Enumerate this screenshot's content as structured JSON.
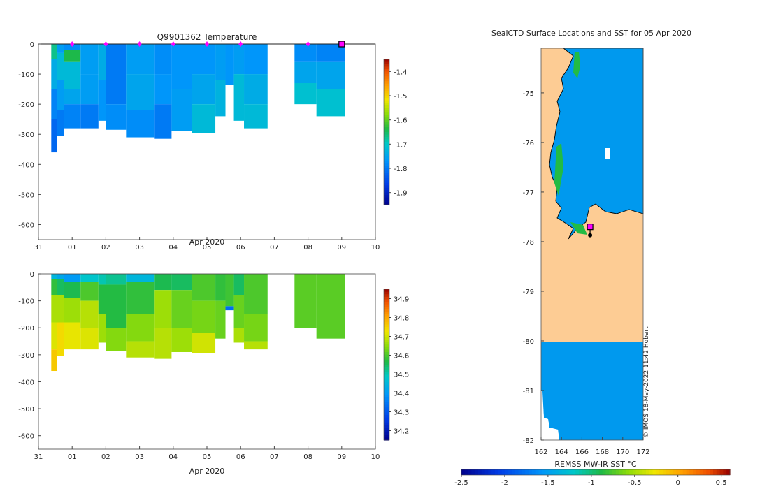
{
  "chart_data": [
    {
      "type": "heatmap",
      "title": "Q9901362  Temperature",
      "xlabel": "Apr 2020",
      "ylabel": "",
      "xticks": [
        "31",
        "01",
        "02",
        "03",
        "04",
        "05",
        "06",
        "07",
        "08",
        "09",
        "10"
      ],
      "xlim": [
        0,
        10
      ],
      "ylim": [
        -650,
        0
      ],
      "yticks": [
        0,
        -100,
        -200,
        -300,
        -400,
        -500,
        -600
      ],
      "colorbar": {
        "ticks": [
          -1.4,
          -1.5,
          -1.6,
          -1.7,
          -1.8,
          -1.9
        ],
        "range": [
          -1.95,
          -1.35
        ]
      },
      "marker_days": [
        1,
        2,
        3,
        4,
        5,
        6,
        8
      ],
      "last_profile_day": 9,
      "profiles": [
        {
          "x0": 0.38,
          "x1": 0.55,
          "bottom": -360,
          "layers": [
            {
              "d": -50,
              "v": -1.67
            },
            {
              "d": -150,
              "v": -1.74
            },
            {
              "d": -250,
              "v": -1.79
            },
            {
              "d": -360,
              "v": -1.82
            }
          ]
        },
        {
          "x0": 0.55,
          "x1": 0.75,
          "bottom": -305,
          "layers": [
            {
              "d": -30,
              "v": -1.76
            },
            {
              "d": -120,
              "v": -1.72
            },
            {
              "d": -220,
              "v": -1.76
            },
            {
              "d": -305,
              "v": -1.8
            }
          ]
        },
        {
          "x0": 0.75,
          "x1": 1.25,
          "bottom": -280,
          "layers": [
            {
              "d": -20,
              "v": -1.78
            },
            {
              "d": -60,
              "v": -1.64
            },
            {
              "d": -150,
              "v": -1.72
            },
            {
              "d": -200,
              "v": -1.75
            },
            {
              "d": -280,
              "v": -1.79
            }
          ]
        },
        {
          "x0": 1.25,
          "x1": 1.78,
          "bottom": -280,
          "layers": [
            {
              "d": -100,
              "v": -1.76
            },
            {
              "d": -200,
              "v": -1.76
            },
            {
              "d": -280,
              "v": -1.8
            }
          ]
        },
        {
          "x0": 1.78,
          "x1": 2.0,
          "bottom": -255,
          "layers": [
            {
              "d": -120,
              "v": -1.74
            },
            {
              "d": -255,
              "v": -1.77
            }
          ]
        },
        {
          "x0": 2.0,
          "x1": 2.6,
          "bottom": -285,
          "layers": [
            {
              "d": -200,
              "v": -1.8
            },
            {
              "d": -285,
              "v": -1.78
            }
          ]
        },
        {
          "x0": 2.6,
          "x1": 3.45,
          "bottom": -310,
          "layers": [
            {
              "d": -100,
              "v": -1.76
            },
            {
              "d": -220,
              "v": -1.75
            },
            {
              "d": -310,
              "v": -1.78
            }
          ]
        },
        {
          "x0": 3.45,
          "x1": 3.95,
          "bottom": -315,
          "layers": [
            {
              "d": -100,
              "v": -1.78
            },
            {
              "d": -200,
              "v": -1.77
            },
            {
              "d": -315,
              "v": -1.8
            }
          ]
        },
        {
          "x0": 3.95,
          "x1": 4.55,
          "bottom": -290,
          "layers": [
            {
              "d": -150,
              "v": -1.77
            },
            {
              "d": -290,
              "v": -1.76
            }
          ]
        },
        {
          "x0": 4.55,
          "x1": 5.25,
          "bottom": -295,
          "layers": [
            {
              "d": -100,
              "v": -1.77
            },
            {
              "d": -200,
              "v": -1.75
            },
            {
              "d": -295,
              "v": -1.72
            }
          ]
        },
        {
          "x0": 5.25,
          "x1": 5.55,
          "bottom": -240,
          "layers": [
            {
              "d": -120,
              "v": -1.76
            },
            {
              "d": -240,
              "v": -1.73
            }
          ]
        },
        {
          "x0": 5.55,
          "x1": 5.8,
          "bottom": -135,
          "layers": [
            {
              "d": -135,
              "v": -1.77
            }
          ]
        },
        {
          "x0": 5.8,
          "x1": 6.1,
          "bottom": -255,
          "layers": [
            {
              "d": -100,
              "v": -1.76
            },
            {
              "d": -255,
              "v": -1.72
            }
          ]
        },
        {
          "x0": 6.1,
          "x1": 6.8,
          "bottom": -280,
          "layers": [
            {
              "d": -100,
              "v": -1.77
            },
            {
              "d": -200,
              "v": -1.74
            },
            {
              "d": -280,
              "v": -1.72
            }
          ]
        },
        {
          "x0": 7.6,
          "x1": 8.25,
          "bottom": -200,
          "layers": [
            {
              "d": -60,
              "v": -1.78
            },
            {
              "d": -130,
              "v": -1.75
            },
            {
              "d": -200,
              "v": -1.71
            }
          ]
        },
        {
          "x0": 8.25,
          "x1": 9.1,
          "bottom": -240,
          "layers": [
            {
              "d": -60,
              "v": -1.79
            },
            {
              "d": -150,
              "v": -1.75
            },
            {
              "d": -240,
              "v": -1.71
            }
          ]
        }
      ]
    },
    {
      "type": "heatmap",
      "title": "",
      "xlabel": "Apr 2020",
      "ylabel": "",
      "xticks": [
        "31",
        "01",
        "02",
        "03",
        "04",
        "05",
        "06",
        "07",
        "08",
        "09",
        "10"
      ],
      "xlim": [
        0,
        10
      ],
      "ylim": [
        -650,
        0
      ],
      "yticks": [
        0,
        -100,
        -200,
        -300,
        -400,
        -500,
        -600
      ],
      "colorbar": {
        "ticks": [
          34.9,
          34.8,
          34.7,
          34.6,
          34.5,
          34.4,
          34.3,
          34.2
        ],
        "range": [
          34.15,
          34.95
        ]
      },
      "profiles": [
        {
          "x0": 0.38,
          "x1": 0.55,
          "bottom": -360,
          "layers": [
            {
              "d": -20,
              "v": 34.45
            },
            {
              "d": -80,
              "v": 34.58
            },
            {
              "d": -180,
              "v": 34.67
            },
            {
              "d": -280,
              "v": 34.71
            },
            {
              "d": -360,
              "v": 34.76
            }
          ]
        },
        {
          "x0": 0.55,
          "x1": 0.75,
          "bottom": -305,
          "layers": [
            {
              "d": -20,
              "v": 34.42
            },
            {
              "d": -80,
              "v": 34.55
            },
            {
              "d": -180,
              "v": 34.67
            },
            {
              "d": -305,
              "v": 34.74
            }
          ]
        },
        {
          "x0": 0.75,
          "x1": 1.25,
          "bottom": -280,
          "layers": [
            {
              "d": -30,
              "v": 34.4
            },
            {
              "d": -90,
              "v": 34.56
            },
            {
              "d": -180,
              "v": 34.66
            },
            {
              "d": -280,
              "v": 34.72
            }
          ]
        },
        {
          "x0": 1.25,
          "x1": 1.78,
          "bottom": -280,
          "layers": [
            {
              "d": -30,
              "v": 34.48
            },
            {
              "d": -100,
              "v": 34.6
            },
            {
              "d": -200,
              "v": 34.68
            },
            {
              "d": -280,
              "v": 34.71
            }
          ]
        },
        {
          "x0": 1.78,
          "x1": 2.0,
          "bottom": -255,
          "layers": [
            {
              "d": -40,
              "v": 34.5
            },
            {
              "d": -150,
              "v": 34.57
            },
            {
              "d": -255,
              "v": 34.66
            }
          ]
        },
        {
          "x0": 2.0,
          "x1": 2.6,
          "bottom": -285,
          "layers": [
            {
              "d": -40,
              "v": 34.52
            },
            {
              "d": -200,
              "v": 34.57
            },
            {
              "d": -285,
              "v": 34.64
            }
          ]
        },
        {
          "x0": 2.6,
          "x1": 3.45,
          "bottom": -310,
          "layers": [
            {
              "d": -30,
              "v": 34.45
            },
            {
              "d": -150,
              "v": 34.58
            },
            {
              "d": -250,
              "v": 34.64
            },
            {
              "d": -310,
              "v": 34.68
            }
          ]
        },
        {
          "x0": 3.45,
          "x1": 3.95,
          "bottom": -315,
          "layers": [
            {
              "d": -60,
              "v": 34.56
            },
            {
              "d": -200,
              "v": 34.66
            },
            {
              "d": -315,
              "v": 34.68
            }
          ]
        },
        {
          "x0": 3.95,
          "x1": 4.55,
          "bottom": -290,
          "layers": [
            {
              "d": -60,
              "v": 34.55
            },
            {
              "d": -200,
              "v": 34.62
            },
            {
              "d": -290,
              "v": 34.66
            }
          ]
        },
        {
          "x0": 4.55,
          "x1": 5.25,
          "bottom": -295,
          "layers": [
            {
              "d": -100,
              "v": 34.6
            },
            {
              "d": -220,
              "v": 34.63
            },
            {
              "d": -295,
              "v": 34.7
            }
          ]
        },
        {
          "x0": 5.25,
          "x1": 5.55,
          "bottom": -240,
          "layers": [
            {
              "d": -100,
              "v": 34.58
            },
            {
              "d": -240,
              "v": 34.62
            }
          ]
        },
        {
          "x0": 5.55,
          "x1": 5.8,
          "bottom": -135,
          "layers": [
            {
              "d": -120,
              "v": 34.59
            },
            {
              "d": -135,
              "v": 34.33
            }
          ]
        },
        {
          "x0": 5.8,
          "x1": 6.1,
          "bottom": -255,
          "layers": [
            {
              "d": -80,
              "v": 34.55
            },
            {
              "d": -200,
              "v": 34.62
            },
            {
              "d": -255,
              "v": 34.67
            }
          ]
        },
        {
          "x0": 6.1,
          "x1": 6.8,
          "bottom": -280,
          "layers": [
            {
              "d": -150,
              "v": 34.6
            },
            {
              "d": -250,
              "v": 34.63
            },
            {
              "d": -280,
              "v": 34.68
            }
          ]
        },
        {
          "x0": 7.6,
          "x1": 8.25,
          "bottom": -200,
          "layers": [
            {
              "d": -200,
              "v": 34.61
            }
          ]
        },
        {
          "x0": 8.25,
          "x1": 9.1,
          "bottom": -240,
          "layers": [
            {
              "d": -240,
              "v": 34.61
            }
          ]
        }
      ]
    },
    {
      "type": "heatmap",
      "title": "SealCTD Surface Locations and SST for 05 Apr 2020",
      "xlabel": "REMSS MW-IR SST °C",
      "ylabel": "",
      "xticks": [
        "162",
        "164",
        "166",
        "168",
        "170",
        "172"
      ],
      "yticks": [
        "-75",
        "-76",
        "-77",
        "-78",
        "-79",
        "-80",
        "-81",
        "-82"
      ],
      "xlim": [
        162,
        172
      ],
      "ylim": [
        -82,
        -74.1
      ],
      "colorbar": {
        "ticks": [
          "-2.5",
          "-2",
          "-1.5",
          "-1",
          "-0.5",
          "0",
          "0.5"
        ],
        "range": [
          -2.5,
          0.6
        ]
      },
      "sst_value": -1.75,
      "ice_shelf_boundary_lat": -80,
      "profile_lon": 166.8,
      "profile_lat": -77.7,
      "copyright": "© IMOS 18-May-2022 11:42 Hobart"
    }
  ]
}
